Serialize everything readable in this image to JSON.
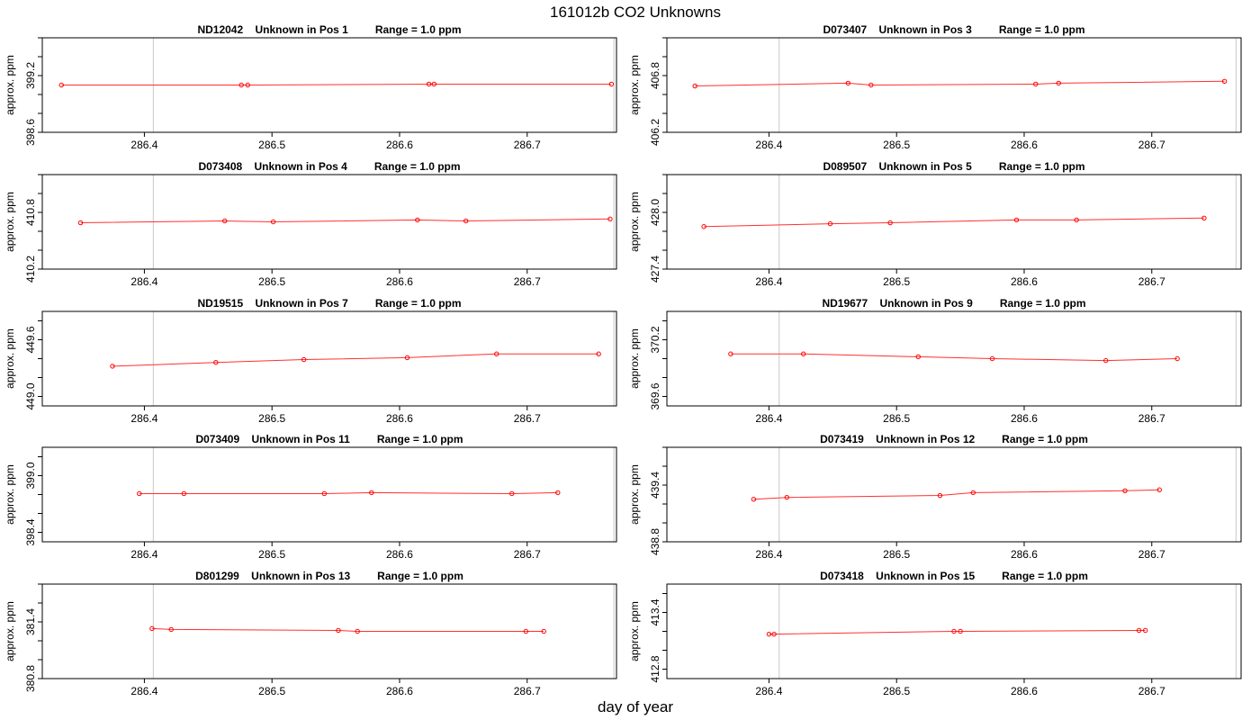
{
  "figure": {
    "title": "161012b  CO2 Unknowns",
    "xlabel": "day of year"
  },
  "chart_data": [
    {
      "type": "line",
      "title": "ND12042    Unknown in Pos 1         Range = 1.0 ppm",
      "xlabel": "",
      "ylabel": "approx. ppm",
      "xlim": [
        286.32,
        286.77
      ],
      "ylim": [
        398.6,
        399.6
      ],
      "xticks": [
        286.4,
        286.5,
        286.6,
        286.7
      ],
      "yticks": [
        398.6,
        399.2
      ],
      "vlines": [
        286.407,
        286.768
      ],
      "x": [
        286.335,
        286.476,
        286.481,
        286.623,
        286.627,
        286.766
      ],
      "y": [
        399.1,
        399.1,
        399.1,
        399.11,
        399.11,
        399.11
      ]
    },
    {
      "type": "line",
      "title": "D073407    Unknown in Pos 3         Range = 1.0 ppm",
      "xlabel": "",
      "ylabel": "approx. ppm",
      "xlim": [
        286.32,
        286.77
      ],
      "ylim": [
        406.2,
        407.2
      ],
      "xticks": [
        286.4,
        286.5,
        286.6,
        286.7
      ],
      "yticks": [
        406.2,
        406.8
      ],
      "vlines": [
        286.408,
        286.766
      ],
      "x": [
        286.342,
        286.462,
        286.48,
        286.609,
        286.627,
        286.757
      ],
      "y": [
        406.69,
        406.72,
        406.7,
        406.71,
        406.72,
        406.74
      ]
    },
    {
      "type": "line",
      "title": "D073408    Unknown in Pos 4         Range = 1.0 ppm",
      "xlabel": "",
      "ylabel": "approx. ppm",
      "xlim": [
        286.32,
        286.77
      ],
      "ylim": [
        410.2,
        411.2
      ],
      "xticks": [
        286.4,
        286.5,
        286.6,
        286.7
      ],
      "yticks": [
        410.2,
        410.8
      ],
      "vlines": [
        286.407,
        286.768
      ],
      "x": [
        286.35,
        286.463,
        286.501,
        286.614,
        286.652,
        286.765
      ],
      "y": [
        410.69,
        410.71,
        410.7,
        410.72,
        410.71,
        410.73
      ]
    },
    {
      "type": "line",
      "title": "D089507    Unknown in Pos 5         Range = 1.0 ppm",
      "xlabel": "",
      "ylabel": "approx. ppm",
      "xlim": [
        286.32,
        286.77
      ],
      "ylim": [
        427.4,
        428.4
      ],
      "xticks": [
        286.4,
        286.5,
        286.6,
        286.7
      ],
      "yticks": [
        427.4,
        428.0
      ],
      "vlines": [
        286.408,
        286.766
      ],
      "x": [
        286.349,
        286.448,
        286.495,
        286.594,
        286.641,
        286.741
      ],
      "y": [
        427.85,
        427.88,
        427.89,
        427.92,
        427.92,
        427.94
      ]
    },
    {
      "type": "line",
      "title": "ND19515    Unknown in Pos 7         Range = 1.0 ppm",
      "xlabel": "",
      "ylabel": "approx. ppm",
      "xlim": [
        286.32,
        286.77
      ],
      "ylim": [
        448.9,
        449.9
      ],
      "xticks": [
        286.4,
        286.5,
        286.6,
        286.7
      ],
      "yticks": [
        449.0,
        449.6
      ],
      "vlines": [
        286.407,
        286.768
      ],
      "x": [
        286.375,
        286.456,
        286.525,
        286.606,
        286.676,
        286.756
      ],
      "y": [
        449.32,
        449.36,
        449.39,
        449.41,
        449.45,
        449.45
      ]
    },
    {
      "type": "line",
      "title": "ND19677    Unknown in Pos 9         Range = 1.0 ppm",
      "xlabel": "",
      "ylabel": "approx. ppm",
      "xlim": [
        286.32,
        286.77
      ],
      "ylim": [
        369.5,
        370.5
      ],
      "xticks": [
        286.4,
        286.5,
        286.6,
        286.7
      ],
      "yticks": [
        369.6,
        370.2
      ],
      "vlines": [
        286.408,
        286.766
      ],
      "x": [
        286.37,
        286.427,
        286.517,
        286.575,
        286.664,
        286.72
      ],
      "y": [
        370.05,
        370.05,
        370.02,
        370.0,
        369.98,
        370.0
      ]
    },
    {
      "type": "line",
      "title": "D073409    Unknown in Pos 11         Range = 1.0 ppm",
      "xlabel": "",
      "ylabel": "approx. ppm",
      "xlim": [
        286.32,
        286.77
      ],
      "ylim": [
        398.3,
        399.3
      ],
      "xticks": [
        286.4,
        286.5,
        286.6,
        286.7
      ],
      "yticks": [
        398.4,
        399.0
      ],
      "vlines": [
        286.407,
        286.768
      ],
      "x": [
        286.396,
        286.431,
        286.541,
        286.578,
        286.688,
        286.724
      ],
      "y": [
        398.81,
        398.81,
        398.81,
        398.82,
        398.81,
        398.82
      ]
    },
    {
      "type": "line",
      "title": "D073419    Unknown in Pos 12         Range = 1.0 ppm",
      "xlabel": "",
      "ylabel": "approx. ppm",
      "xlim": [
        286.32,
        286.77
      ],
      "ylim": [
        438.8,
        439.8
      ],
      "xticks": [
        286.4,
        286.5,
        286.6,
        286.7
      ],
      "yticks": [
        438.8,
        439.4
      ],
      "vlines": [
        286.408,
        286.766
      ],
      "x": [
        286.388,
        286.414,
        286.534,
        286.56,
        286.679,
        286.706
      ],
      "y": [
        439.25,
        439.27,
        439.29,
        439.32,
        439.34,
        439.35
      ]
    },
    {
      "type": "line",
      "title": "D801299    Unknown in Pos 13         Range = 1.0 ppm",
      "xlabel": "",
      "ylabel": "approx. ppm",
      "xlim": [
        286.32,
        286.77
      ],
      "ylim": [
        380.8,
        381.8
      ],
      "xticks": [
        286.4,
        286.5,
        286.6,
        286.7
      ],
      "yticks": [
        380.8,
        381.4
      ],
      "vlines": [
        286.407,
        286.768
      ],
      "x": [
        286.406,
        286.421,
        286.552,
        286.567,
        286.699,
        286.713
      ],
      "y": [
        381.33,
        381.32,
        381.31,
        381.3,
        381.3,
        381.3
      ]
    },
    {
      "type": "line",
      "title": "D073418    Unknown in Pos 15         Range = 1.0 ppm",
      "xlabel": "",
      "ylabel": "approx. ppm",
      "xlim": [
        286.32,
        286.77
      ],
      "ylim": [
        412.7,
        413.7
      ],
      "xticks": [
        286.4,
        286.5,
        286.6,
        286.7
      ],
      "yticks": [
        412.8,
        413.4
      ],
      "vlines": [
        286.408,
        286.766
      ],
      "x": [
        286.4,
        286.404,
        286.545,
        286.55,
        286.69,
        286.695
      ],
      "y": [
        413.17,
        413.17,
        413.2,
        413.2,
        413.21,
        413.21
      ]
    }
  ]
}
